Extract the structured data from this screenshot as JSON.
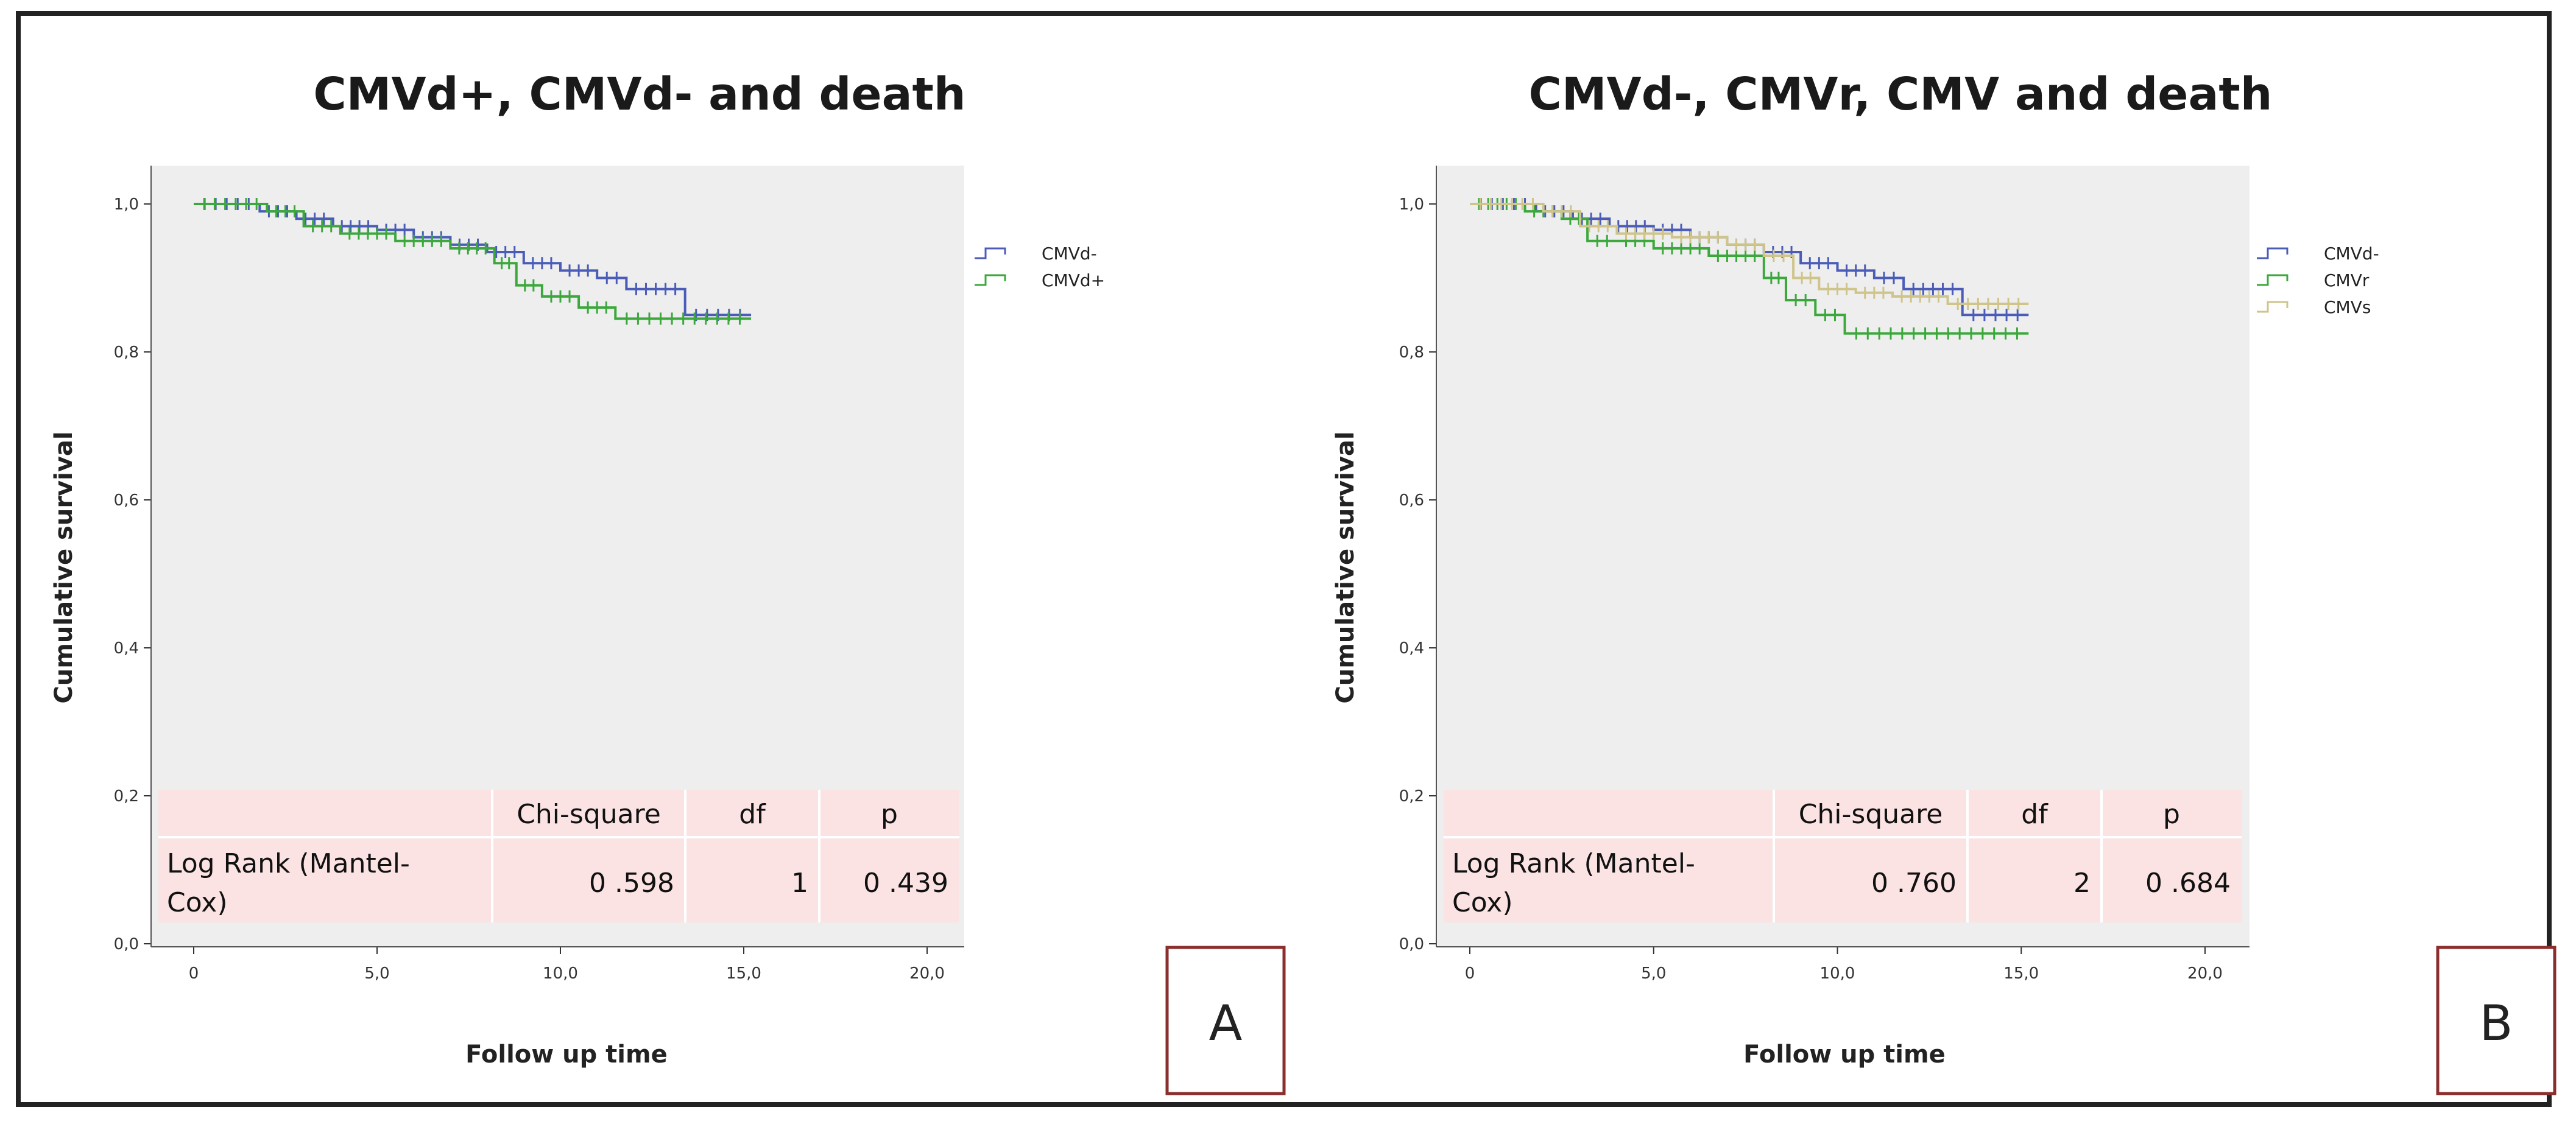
{
  "chart_data": [
    {
      "type": "line",
      "title": "CMVd+, CMVd- and death",
      "xlabel": "Follow up time",
      "ylabel": "Cumulative survival",
      "xlim": [
        0,
        20
      ],
      "ylim": [
        0,
        1
      ],
      "x_ticks": [
        "0",
        "5,0",
        "10,0",
        "15,0",
        "20,0"
      ],
      "y_ticks": [
        "0,0",
        "0,2",
        "0,4",
        "0,6",
        "0,8",
        "1,0"
      ],
      "legend": [
        "CMVd-",
        "CMVd+"
      ],
      "series": [
        {
          "name": "CMVd-",
          "color": "#4a5cb8",
          "x": [
            0,
            1.8,
            2.8,
            3.8,
            5.0,
            6.0,
            7.0,
            8.0,
            9.0,
            10.0,
            11.0,
            11.8,
            13.4,
            15.2
          ],
          "y": [
            1.0,
            0.99,
            0.98,
            0.97,
            0.965,
            0.955,
            0.945,
            0.935,
            0.92,
            0.91,
            0.9,
            0.885,
            0.85,
            0.85
          ]
        },
        {
          "name": "CMVd+",
          "color": "#3ca83c",
          "x": [
            0,
            2.0,
            3.0,
            4.0,
            5.5,
            7.0,
            8.2,
            8.8,
            9.5,
            10.5,
            11.5,
            15.2
          ],
          "y": [
            1.0,
            0.99,
            0.97,
            0.96,
            0.95,
            0.94,
            0.92,
            0.89,
            0.875,
            0.86,
            0.845,
            0.845
          ]
        }
      ],
      "table": {
        "headers": [
          "",
          "Chi-square",
          "df",
          "p"
        ],
        "row_label": "Log Rank (Mantel-Cox)",
        "row_label_lines": [
          "Log Rank (Mantel-",
          "Cox)"
        ],
        "values": [
          "0 .598",
          "1",
          "0 .439"
        ]
      },
      "panel_label": "A"
    },
    {
      "type": "line",
      "title": "CMVd-, CMVr, CMV and death",
      "xlabel": "Follow up time",
      "ylabel": "Cumulative survival",
      "xlim": [
        0,
        20
      ],
      "ylim": [
        0,
        1
      ],
      "x_ticks": [
        "0",
        "5,0",
        "10,0",
        "15,0",
        "20,0"
      ],
      "y_ticks": [
        "0,0",
        "0,2",
        "0,4",
        "0,6",
        "0,8",
        "1,0"
      ],
      "legend": [
        "CMVd-",
        "CMVr",
        "CMVs"
      ],
      "series": [
        {
          "name": "CMVd-",
          "color": "#4a5cb8",
          "x": [
            0,
            1.8,
            2.8,
            3.8,
            5.0,
            6.0,
            7.0,
            8.0,
            9.0,
            10.0,
            11.0,
            11.8,
            13.4,
            15.2
          ],
          "y": [
            1.0,
            0.99,
            0.98,
            0.97,
            0.965,
            0.955,
            0.945,
            0.935,
            0.92,
            0.91,
            0.9,
            0.885,
            0.85,
            0.85
          ]
        },
        {
          "name": "CMVr",
          "color": "#3ca83c",
          "x": [
            0,
            1.5,
            2.5,
            3.2,
            4.0,
            5.0,
            6.5,
            8.0,
            8.6,
            9.4,
            10.2,
            15.2
          ],
          "y": [
            1.0,
            0.99,
            0.98,
            0.95,
            0.95,
            0.94,
            0.93,
            0.9,
            0.87,
            0.85,
            0.825,
            0.825
          ]
        },
        {
          "name": "CMVs",
          "color": "#cfc48a",
          "x": [
            0,
            2.0,
            3.0,
            4.0,
            5.5,
            7.0,
            8.0,
            8.8,
            9.5,
            10.5,
            11.5,
            13.0,
            15.2
          ],
          "y": [
            1.0,
            0.99,
            0.97,
            0.96,
            0.955,
            0.945,
            0.93,
            0.9,
            0.885,
            0.88,
            0.875,
            0.865,
            0.865
          ]
        }
      ],
      "table": {
        "headers": [
          "",
          "Chi-square",
          "df",
          "p"
        ],
        "row_label": "Log Rank (Mantel-Cox)",
        "row_label_lines": [
          "Log Rank (Mantel-",
          "Cox)"
        ],
        "values": [
          "0 .760",
          "2",
          "0 .684"
        ]
      },
      "panel_label": "B"
    }
  ]
}
